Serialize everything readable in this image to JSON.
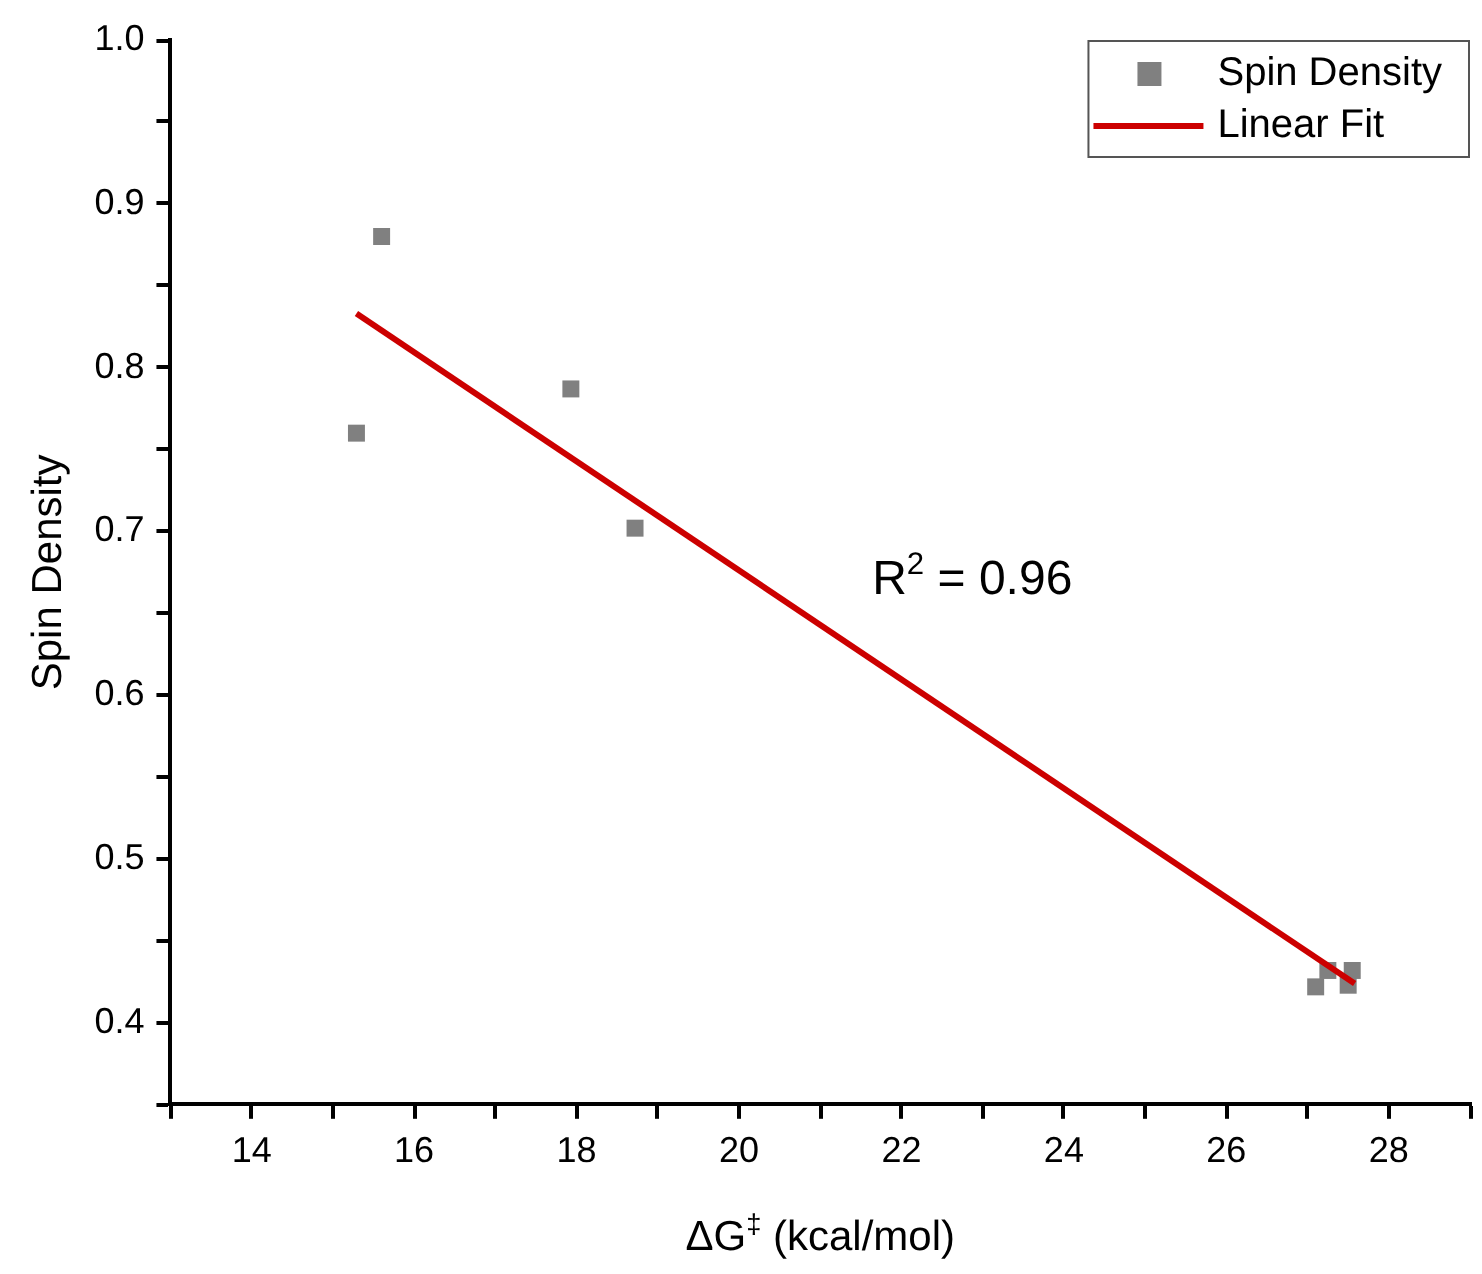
{
  "chart_data": {
    "type": "scatter",
    "xlabel": "ΔG$^{‡}$ (kcal/mol)",
    "ylabel": "Spin Density",
    "annotations": [
      "R$^{2}$ = 0.96"
    ],
    "series": [
      {
        "name": "Spin Density",
        "marker": "square",
        "color": "#808080",
        "x": [
          15.29,
          15.6,
          17.93,
          18.72,
          27.1,
          27.25,
          27.5,
          27.55
        ],
        "values": [
          0.76,
          0.88,
          0.787,
          0.702,
          0.422,
          0.432,
          0.423,
          0.432
        ]
      },
      {
        "name": "Linear Fit",
        "type": "line",
        "marker": "none",
        "color": "#cc0000",
        "x": [
          15.29,
          27.58
        ],
        "values": [
          0.833,
          0.424
        ]
      }
    ],
    "xlim": [
      13,
      29
    ],
    "xticks": [
      {
        "value": 13,
        "label": null
      },
      14,
      {
        "value": 15,
        "label": null
      },
      16,
      {
        "value": 17,
        "label": null
      },
      18,
      {
        "value": 19,
        "label": null
      },
      20,
      {
        "value": 21,
        "label": null
      },
      22,
      {
        "value": 23,
        "label": null
      },
      24,
      {
        "value": 25,
        "label": null
      },
      26,
      {
        "value": 27,
        "label": null
      },
      28,
      {
        "value": 29,
        "label": null
      }
    ],
    "ylim": [
      0.35,
      1.0
    ],
    "yticks": [
      {
        "value": 0.35,
        "label": null
      },
      {
        "value": 0.4,
        "label": "0.4"
      },
      {
        "value": 0.45,
        "label": null
      },
      {
        "value": 0.5,
        "label": "0.5"
      },
      {
        "value": 0.55,
        "label": null
      },
      {
        "value": 0.6,
        "label": "0.6"
      },
      {
        "value": 0.65,
        "label": null
      },
      {
        "value": 0.7,
        "label": "0.7"
      },
      {
        "value": 0.75,
        "label": null
      },
      {
        "value": 0.8,
        "label": "0.8"
      },
      {
        "value": 0.85,
        "label": null
      },
      {
        "value": 0.9,
        "label": "0.9"
      },
      {
        "value": 0.95,
        "label": null
      },
      {
        "value": 1.0,
        "label": "1.0"
      }
    ],
    "grid": false,
    "legend": "top right"
  }
}
